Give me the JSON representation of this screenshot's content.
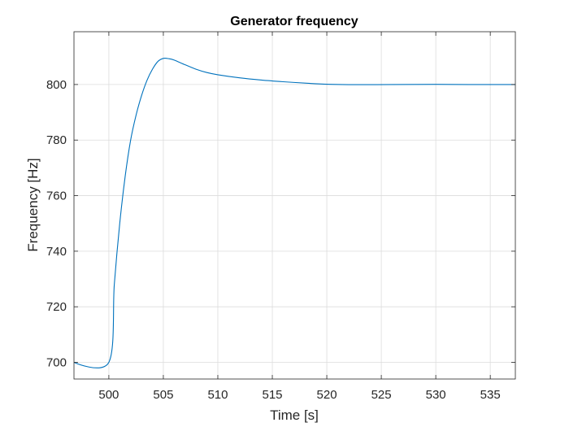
{
  "chart_data": {
    "type": "line",
    "title": "Generator frequency",
    "xlabel": "Time [s]",
    "ylabel": "Frequency [Hz]",
    "xlim": [
      496.8,
      537.3
    ],
    "ylim": [
      694,
      819
    ],
    "x_ticks": [
      500,
      505,
      510,
      515,
      520,
      525,
      530,
      535
    ],
    "y_ticks": [
      700,
      720,
      740,
      760,
      780,
      800
    ],
    "x_tick_labels": [
      "500",
      "505",
      "510",
      "515",
      "520",
      "525",
      "530",
      "535"
    ],
    "y_tick_labels": [
      "700",
      "720",
      "740",
      "760",
      "780",
      "800"
    ],
    "grid": true,
    "series": [
      {
        "color": "#0072BD",
        "points": [
          [
            496.8,
            700.0
          ],
          [
            500.0,
            700.0
          ],
          [
            500.5,
            728.0
          ],
          [
            501.0,
            750.0
          ],
          [
            501.5,
            767.0
          ],
          [
            502.0,
            780.0
          ],
          [
            502.5,
            789.0
          ],
          [
            503.0,
            796.0
          ],
          [
            503.5,
            801.5
          ],
          [
            504.0,
            805.5
          ],
          [
            504.5,
            808.3
          ],
          [
            505.0,
            809.4
          ],
          [
            505.5,
            809.3
          ],
          [
            506.0,
            808.8
          ],
          [
            507.0,
            807.1
          ],
          [
            508.0,
            805.5
          ],
          [
            509.0,
            804.3
          ],
          [
            510.0,
            803.5
          ],
          [
            512.0,
            802.4
          ],
          [
            514.0,
            801.6
          ],
          [
            516.0,
            801.0
          ],
          [
            518.0,
            800.5
          ],
          [
            520.0,
            800.1
          ],
          [
            522.0,
            799.95
          ],
          [
            524.0,
            799.95
          ],
          [
            526.0,
            800.0
          ],
          [
            530.0,
            800.05
          ],
          [
            533.0,
            800.0
          ],
          [
            537.3,
            800.0
          ]
        ]
      }
    ]
  }
}
